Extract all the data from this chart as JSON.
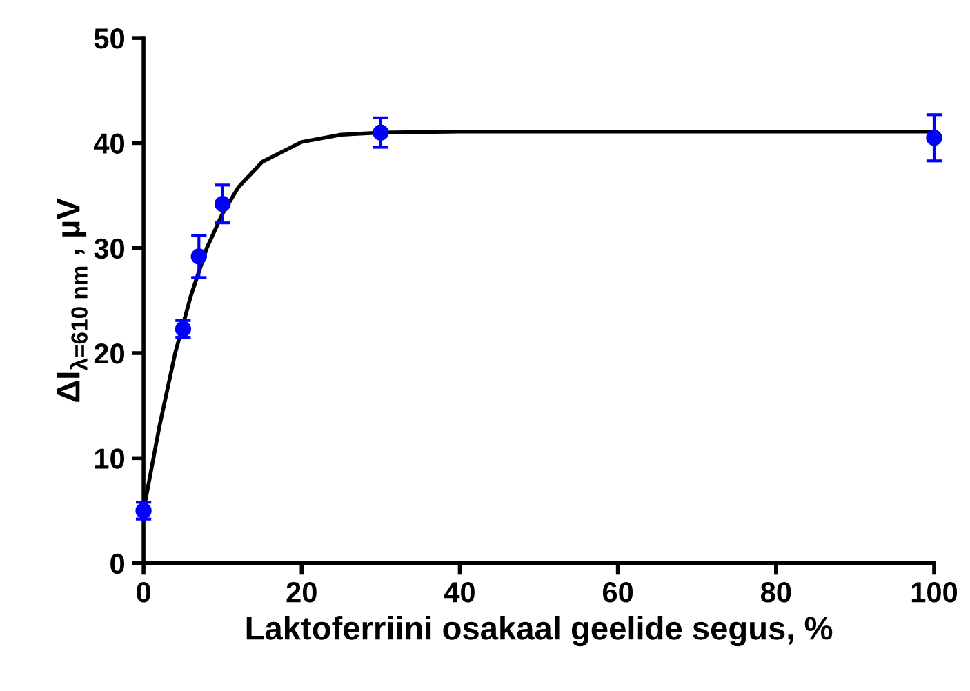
{
  "chart_data": {
    "type": "scatter",
    "xlabel": "Laktoferriini osakaal geelide segus, %",
    "ylabel": "ΔI$_{λ=610 nm}$ , µV",
    "xlim": [
      0,
      100
    ],
    "xticks": [
      0,
      20,
      40,
      60,
      80,
      100
    ],
    "ylim": [
      0,
      50
    ],
    "yticks": [
      0,
      10,
      20,
      30,
      40,
      50
    ],
    "grid": false,
    "legend": false,
    "series": [
      {
        "color": "#0000ff",
        "marker": "circle",
        "x": [
          0,
          5,
          7,
          10,
          30,
          100
        ],
        "values": [
          5.0,
          22.3,
          29.2,
          34.2,
          41.0,
          40.5
        ],
        "errors": [
          0.8,
          0.8,
          2.0,
          1.8,
          1.4,
          2.2
        ]
      },
      {
        "type": "line",
        "color": "#000000",
        "marker": "none",
        "line_style": "solid",
        "x": [
          0,
          2,
          4,
          6,
          8,
          10,
          12,
          15,
          20,
          25,
          30,
          40,
          60,
          100
        ],
        "values": [
          5,
          13,
          20,
          25.5,
          30,
          33.3,
          35.8,
          38.2,
          40.1,
          40.8,
          41,
          41.1,
          41.1,
          41.1
        ]
      }
    ]
  }
}
